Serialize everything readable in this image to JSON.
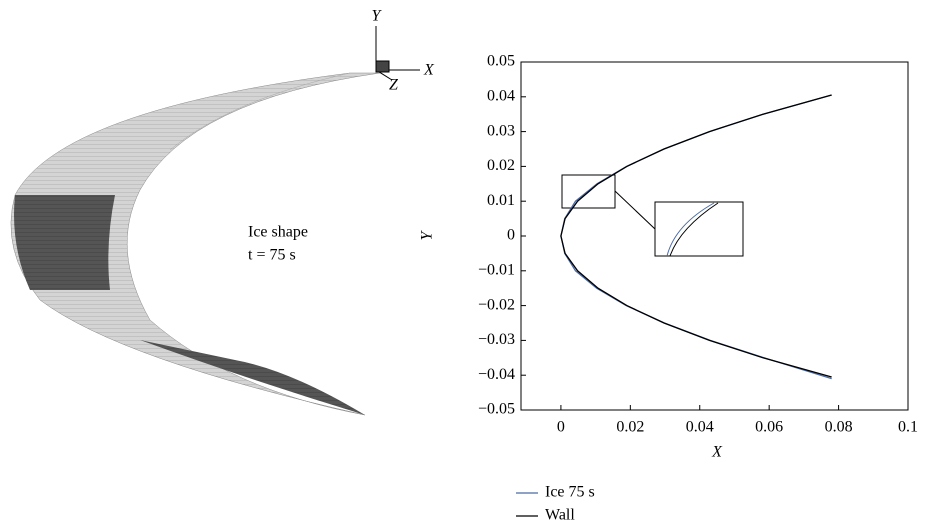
{
  "ice_panel": {
    "caption": "Ice shape",
    "time": "t = 75 s",
    "axis_y": "Y",
    "axis_x": "X",
    "axis_z": "Z"
  },
  "chart_data": {
    "type": "line",
    "x_label": "X",
    "y_label": "Y",
    "xlim": [
      -0.0115,
      0.1
    ],
    "xticks": [
      0,
      0.02,
      0.04,
      0.06,
      0.08,
      0.1
    ],
    "ylim": [
      -0.05,
      0.05
    ],
    "yticks": [
      {
        "value": -0.05,
        "label": "−0.05"
      },
      {
        "value": -0.04,
        "label": "−0.04"
      },
      {
        "value": -0.03,
        "label": "−0.03"
      },
      {
        "value": -0.02,
        "label": "−0.02"
      },
      {
        "value": -0.01,
        "label": "−0.01"
      },
      0,
      0.01,
      0.02,
      0.03,
      0.04,
      0.05
    ],
    "grid": false,
    "series": [
      {
        "name": "Ice 75 s",
        "color": "#4a6aa8",
        "x": [
          0.078,
          0.0585,
          0.043,
          0.0298,
          0.0188,
          0.0103,
          0.0042,
          0.0011,
          0,
          0.0011,
          0.0042,
          0.0104,
          0.0189,
          0.0297,
          0.0428,
          0.0583,
          0.078
        ],
        "values": [
          -0.041,
          -0.035,
          -0.03,
          -0.025,
          -0.02,
          -0.015,
          -0.01,
          -0.005,
          0,
          0.005,
          0.01,
          0.015,
          0.02,
          0.025,
          0.03,
          0.035,
          0.0405
        ]
      },
      {
        "name": "Wall",
        "color": "#000000",
        "x": [
          0.078,
          0.0582,
          0.0428,
          0.0297,
          0.019,
          0.0107,
          0.0048,
          0.0012,
          0,
          0.0012,
          0.0048,
          0.0107,
          0.019,
          0.0297,
          0.0428,
          0.0582,
          0.078
        ],
        "values": [
          -0.0405,
          -0.035,
          -0.03,
          -0.025,
          -0.02,
          -0.015,
          -0.01,
          -0.005,
          0,
          0.005,
          0.01,
          0.015,
          0.02,
          0.025,
          0.03,
          0.035,
          0.0405
        ]
      }
    ]
  }
}
